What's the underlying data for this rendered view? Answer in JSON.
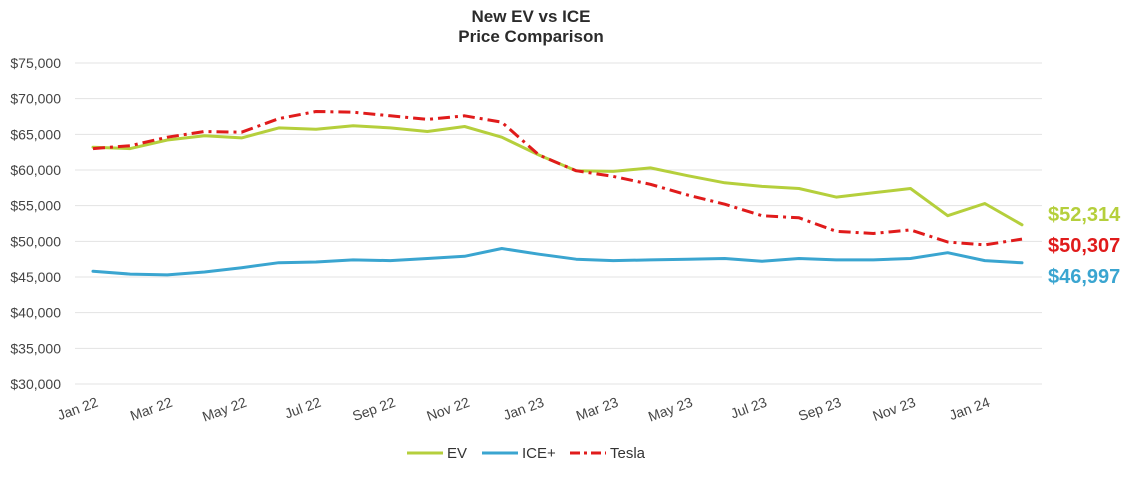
{
  "chart_data": {
    "type": "line",
    "title": [
      "New EV vs ICE",
      "Price Comparison"
    ],
    "xlabel": "",
    "ylabel": "",
    "ylim": [
      30000,
      75000
    ],
    "y_ticks": [
      75000,
      70000,
      65000,
      60000,
      55000,
      50000,
      45000,
      40000,
      35000,
      30000
    ],
    "y_tick_labels": [
      "$75,000",
      "$70,000",
      "$65,000",
      "$60,000",
      "$55,000",
      "$50,000",
      "$45,000",
      "$40,000",
      "$35,000",
      "$30,000"
    ],
    "x": [
      "Jan 22",
      "Feb 22",
      "Mar 22",
      "Apr 22",
      "May 22",
      "Jun 22",
      "Jul 22",
      "Aug 22",
      "Sep 22",
      "Oct 22",
      "Nov 22",
      "Dec 22",
      "Jan 23",
      "Feb 23",
      "Mar 23",
      "Apr 23",
      "May 23",
      "Jun 23",
      "Jul 23",
      "Aug 23",
      "Sep 23",
      "Oct 23",
      "Nov 23",
      "Dec 23",
      "Jan 24",
      "Feb 24"
    ],
    "x_tick_labels": [
      "Jan 22",
      "Mar 22",
      "May 22",
      "Jul 22",
      "Sep 22",
      "Nov 22",
      "Jan 23",
      "Mar 23",
      "May 23",
      "Jul 23",
      "Sep 23",
      "Nov 23",
      "Jan 24"
    ],
    "grid": true,
    "legend_position": "bottom",
    "series": [
      {
        "name": "EV",
        "color": "#b5cf3c",
        "style": "solid",
        "values": [
          63200,
          63000,
          64200,
          64800,
          64500,
          65900,
          65700,
          66200,
          65900,
          65400,
          66100,
          64600,
          62100,
          59900,
          59800,
          60300,
          59200,
          58200,
          57700,
          57400,
          56200,
          56800,
          57400,
          53600,
          55300,
          52314
        ],
        "end_label": "$52,314"
      },
      {
        "name": "ICE+",
        "color": "#3aa5d0",
        "style": "solid",
        "values": [
          45800,
          45400,
          45300,
          45700,
          46300,
          47000,
          47100,
          47400,
          47300,
          47600,
          47900,
          49000,
          48200,
          47500,
          47300,
          47400,
          47500,
          47600,
          47200,
          47600,
          47400,
          47400,
          47600,
          48400,
          47300,
          46997
        ],
        "end_label": "$46,997"
      },
      {
        "name": "Tesla",
        "color": "#e01b1b",
        "style": "dash-dot",
        "values": [
          63000,
          63400,
          64600,
          65400,
          65300,
          67200,
          68200,
          68100,
          67600,
          67100,
          67600,
          66700,
          62100,
          59900,
          59100,
          58000,
          56500,
          55200,
          53600,
          53300,
          51400,
          51100,
          51600,
          49900,
          49500,
          50307
        ],
        "end_label": "$50,307"
      }
    ]
  }
}
